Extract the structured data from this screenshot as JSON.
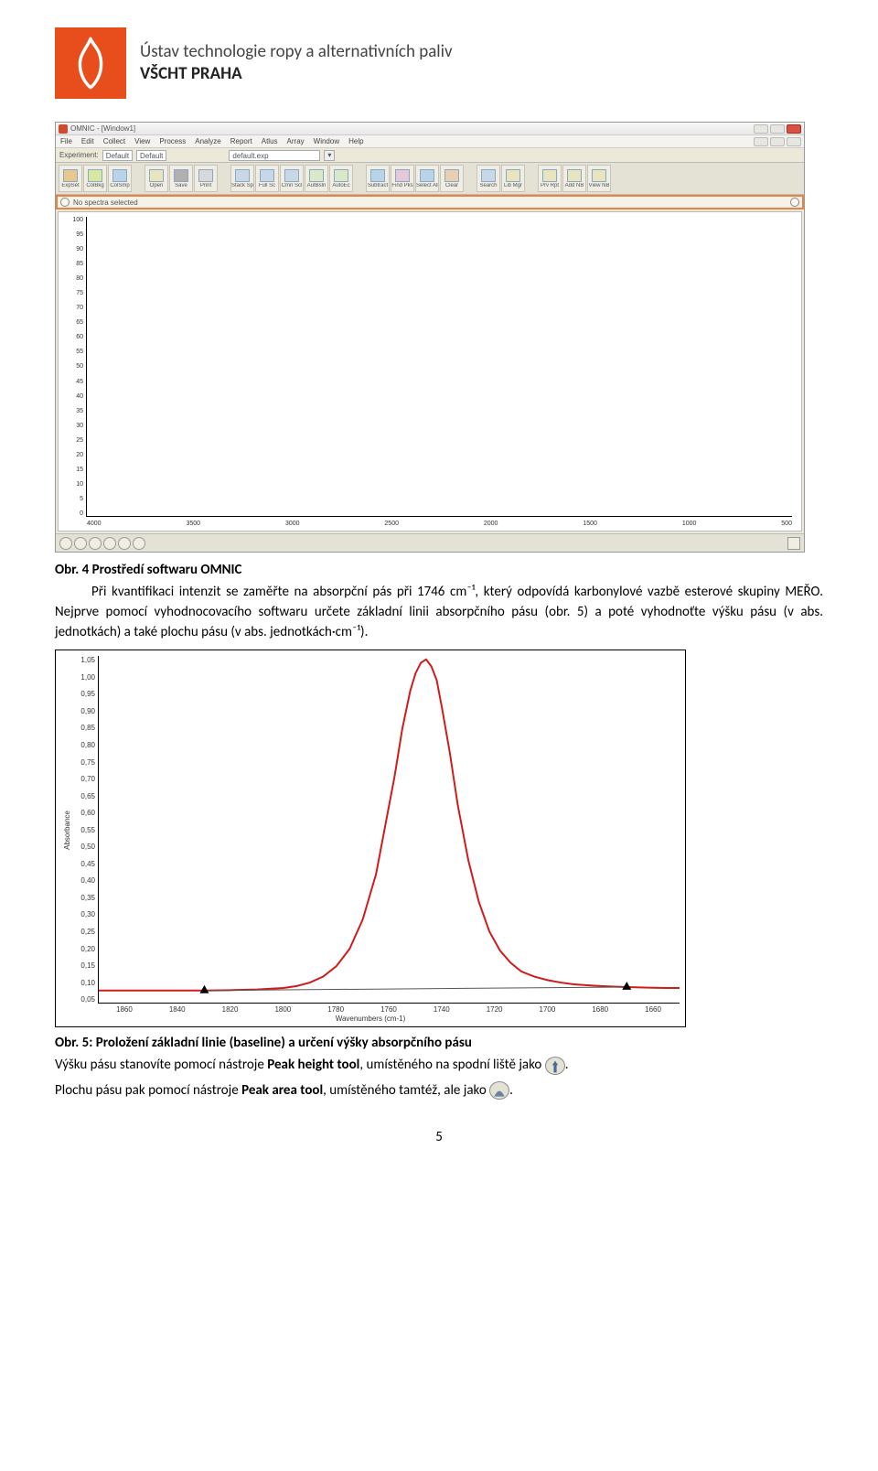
{
  "header": {
    "line1": "Ústav technologie ropy a alternativních paliv",
    "line2": "VŠCHT PRAHA"
  },
  "screenshot1": {
    "title": "OMNIC - [Window1]",
    "menus": [
      "File",
      "Edit",
      "Collect",
      "View",
      "Process",
      "Analyze",
      "Report",
      "Atlus",
      "Array",
      "Window",
      "Help"
    ],
    "exp_label": "Experiment:",
    "exp_val1": "Default",
    "exp_val2": "Default",
    "exp_sel": "default.exp",
    "toolbar_labels": [
      "ExpSet",
      "ColBkg",
      "ColSmp",
      "Open",
      "Save",
      "Print",
      "Stack Spe",
      "Full Sc",
      "Cmn Scl",
      "AutBsln",
      "AutoEc",
      "Subtract",
      "Find Pks",
      "Select All",
      "Clear",
      "Search",
      "Lib Mgr",
      "Prv Rpt",
      "Add NB",
      "View NB"
    ],
    "toolbar_icon_colors": [
      "#e8c890",
      "#d8e8a0",
      "#b8d4e8",
      "#e8e4c0",
      "#b0b0b0",
      "#d8d8d8",
      "#c8d8e8",
      "#c8d8e8",
      "#c8d8e8",
      "#d8e8c8",
      "#d8e8c8",
      "#b8d4e8",
      "#e8c8d8",
      "#b8d4e8",
      "#e8d0b0",
      "#c8d8e8",
      "#e8e4c0",
      "#e8e4c0",
      "#e8e4c0",
      "#e8e4c0"
    ],
    "selbar_text": "No spectra selected",
    "y_ticks": [
      "100",
      "95",
      "90",
      "85",
      "80",
      "75",
      "70",
      "65",
      "60",
      "55",
      "50",
      "45",
      "40",
      "35",
      "30",
      "25",
      "20",
      "15",
      "10",
      "5",
      "0"
    ],
    "x_ticks": [
      "4000",
      "3500",
      "3000",
      "2500",
      "2000",
      "1500",
      "1000",
      "500"
    ],
    "plot_bg": "#ffffff"
  },
  "fig4_caption": "Obr. 4 Prostředí softwaru OMNIC",
  "para1": "Při kvantifikaci intenzit se zaměřte na absorpční pás při 1746 cm⁻¹, který odpovídá karbonylové vazbě esterové skupiny MEŘO. Nejprve pomocí vyhodnocovacího softwaru určete základní linii absorpčního pásu (obr. 5) a poté vyhodnoťte výšku pásu (v abs. jednotkách) a také plochu pásu (v abs. jednotkách·cm⁻¹).",
  "spectrum": {
    "ylabel": "Absorbance",
    "y_ticks": [
      "1,05",
      "1,00",
      "0,95",
      "0,90",
      "0,85",
      "0,80",
      "0,75",
      "0,70",
      "0,65",
      "0,60",
      "0,55",
      "0,50",
      "0,45",
      "0,40",
      "0,35",
      "0,30",
      "0,25",
      "0,20",
      "0,15",
      "0,10",
      "0,05"
    ],
    "y_min": 0.05,
    "y_max": 1.05,
    "x_ticks": [
      "1860",
      "1840",
      "1820",
      "1800",
      "1780",
      "1760",
      "1740",
      "1720",
      "1700",
      "1680",
      "1660"
    ],
    "x_min": 1870,
    "x_max": 1650,
    "xlabel": "Wavenumbers (cm-1)",
    "peak_color": "#d11a1a",
    "baseline_color": "#555555",
    "marker_color": "#000000",
    "peak_x": 1746,
    "peak_height": 1.04,
    "baseline_left_x": 1830,
    "baseline_left_y": 0.085,
    "baseline_right_x": 1670,
    "baseline_right_y": 0.095,
    "curve_points": [
      [
        1870,
        0.085
      ],
      [
        1860,
        0.085
      ],
      [
        1850,
        0.085
      ],
      [
        1840,
        0.085
      ],
      [
        1830,
        0.085
      ],
      [
        1820,
        0.086
      ],
      [
        1810,
        0.088
      ],
      [
        1800,
        0.092
      ],
      [
        1795,
        0.098
      ],
      [
        1790,
        0.108
      ],
      [
        1785,
        0.125
      ],
      [
        1780,
        0.155
      ],
      [
        1775,
        0.205
      ],
      [
        1770,
        0.29
      ],
      [
        1765,
        0.42
      ],
      [
        1762,
        0.54
      ],
      [
        1758,
        0.7
      ],
      [
        1755,
        0.84
      ],
      [
        1752,
        0.95
      ],
      [
        1750,
        1.0
      ],
      [
        1748,
        1.03
      ],
      [
        1746,
        1.04
      ],
      [
        1744,
        1.02
      ],
      [
        1742,
        0.98
      ],
      [
        1740,
        0.9
      ],
      [
        1737,
        0.77
      ],
      [
        1734,
        0.62
      ],
      [
        1730,
        0.46
      ],
      [
        1726,
        0.34
      ],
      [
        1722,
        0.255
      ],
      [
        1718,
        0.2
      ],
      [
        1714,
        0.165
      ],
      [
        1710,
        0.14
      ],
      [
        1705,
        0.125
      ],
      [
        1700,
        0.115
      ],
      [
        1695,
        0.108
      ],
      [
        1690,
        0.103
      ],
      [
        1685,
        0.1
      ],
      [
        1680,
        0.098
      ],
      [
        1675,
        0.096
      ],
      [
        1670,
        0.095
      ],
      [
        1665,
        0.094
      ],
      [
        1660,
        0.093
      ],
      [
        1655,
        0.092
      ],
      [
        1650,
        0.092
      ]
    ]
  },
  "fig5_caption": "Obr. 5: Proložení základní linie (baseline) a určení výšky absorpčního pásu",
  "para2_a": "Výšku pásu stanovíte pomocí nástroje ",
  "para2_b": "Peak height tool",
  "para2_c": ", umístěného na spodní liště jako ",
  "para2_d": ".",
  "para3_a": "Plochu pásu pak pomocí nástroje ",
  "para3_b": "Peak area tool",
  "para3_c": ", umístěného tamtéž, ale jako ",
  "para3_d": ".",
  "page_number": "5"
}
